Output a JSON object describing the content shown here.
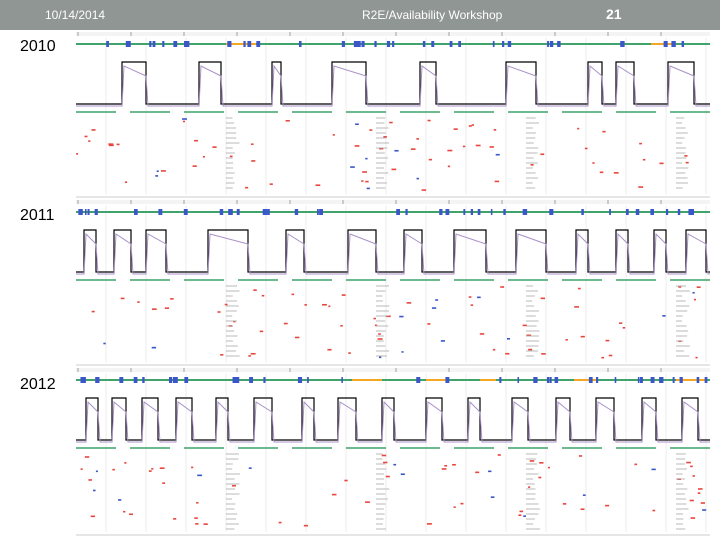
{
  "header": {
    "date": "10/14/2014",
    "title": "R2E/Availability Workshop",
    "page_number": "21"
  },
  "panels": [
    {
      "year": "2010"
    },
    {
      "year": "2011"
    },
    {
      "year": "2012"
    }
  ],
  "colors": {
    "header_bg": "#8f9694",
    "fill_trace": "#000000",
    "beam_trace": "#a990c8",
    "green_band": "#3fa36b",
    "orange_band": "#f5a623",
    "blue_band": "#3a56c8",
    "red_markers": "#e8453c",
    "grid": "#d8d8d8"
  }
}
